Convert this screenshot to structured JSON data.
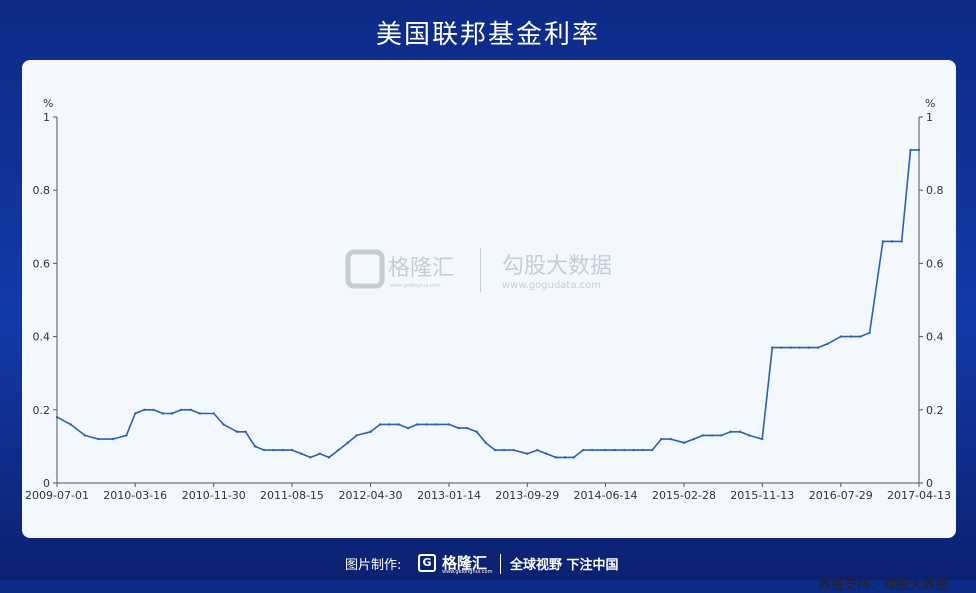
{
  "title": "美国联邦基金利率",
  "source": "数据支持：勾股大数据",
  "watermark": {
    "brand": "格隆汇",
    "brand_url": "www.gelonghui.com",
    "data_brand": "勾股大数据",
    "data_url": "www.gogudata.com"
  },
  "footer": {
    "made_by": "图片制作:",
    "logo_name": "格隆汇",
    "logo_sub": "www.gelonghui.com",
    "slogan": "全球视野 下注中国"
  },
  "chart_data": {
    "type": "line",
    "title": "美国联邦基金利率",
    "ylabel": "%",
    "ylabel_right": "%",
    "ylim": [
      0,
      1
    ],
    "yticks": [
      0,
      0.2,
      0.4,
      0.6,
      0.8,
      1
    ],
    "ytick_labels": [
      "0",
      "0.2",
      "0.4",
      "0.6",
      "0.8",
      "1"
    ],
    "xlim": [
      "2009-07-01",
      "2017-04-13"
    ],
    "xticks": [
      "2009-07-01",
      "2010-03-16",
      "2010-11-30",
      "2011-08-15",
      "2012-04-30",
      "2013-01-14",
      "2013-09-29",
      "2014-06-14",
      "2015-02-28",
      "2015-11-13",
      "2016-07-29",
      "2017-04-13"
    ],
    "color": "#2f5fb3",
    "series": [
      {
        "x": [
          "2009-07-01",
          "2009-08-15",
          "2009-10-01",
          "2009-11-15",
          "2010-01-01",
          "2010-02-15",
          "2010-03-16",
          "2010-04-15",
          "2010-05-15",
          "2010-06-15",
          "2010-07-15",
          "2010-08-15",
          "2010-09-15",
          "2010-10-15",
          "2010-11-30",
          "2011-01-01",
          "2011-02-15",
          "2011-03-15",
          "2011-04-15",
          "2011-05-15",
          "2011-06-15",
          "2011-07-15",
          "2011-08-15",
          "2011-09-15",
          "2011-10-15",
          "2011-11-15",
          "2011-12-15",
          "2012-01-15",
          "2012-02-15",
          "2012-03-15",
          "2012-04-30",
          "2012-06-01",
          "2012-07-01",
          "2012-08-01",
          "2012-09-01",
          "2012-10-01",
          "2012-11-01",
          "2012-12-01",
          "2013-01-14",
          "2013-02-15",
          "2013-03-15",
          "2013-04-15",
          "2013-05-15",
          "2013-06-15",
          "2013-07-15",
          "2013-08-15",
          "2013-09-29",
          "2013-11-01",
          "2013-12-01",
          "2014-01-01",
          "2014-02-01",
          "2014-03-01",
          "2014-04-01",
          "2014-05-01",
          "2014-06-14",
          "2014-07-15",
          "2014-08-15",
          "2014-09-15",
          "2014-10-15",
          "2014-11-15",
          "2014-12-15",
          "2015-01-15",
          "2015-02-28",
          "2015-04-01",
          "2015-05-01",
          "2015-06-01",
          "2015-07-01",
          "2015-08-01",
          "2015-09-01",
          "2015-10-01",
          "2015-11-13",
          "2015-12-16",
          "2016-01-15",
          "2016-02-15",
          "2016-03-15",
          "2016-04-15",
          "2016-05-15",
          "2016-06-15",
          "2016-07-29",
          "2016-09-01",
          "2016-10-01",
          "2016-11-01",
          "2016-12-15",
          "2017-01-15",
          "2017-02-15",
          "2017-03-16",
          "2017-04-13"
        ],
        "values": [
          0.18,
          0.16,
          0.13,
          0.12,
          0.12,
          0.13,
          0.19,
          0.2,
          0.2,
          0.19,
          0.19,
          0.2,
          0.2,
          0.19,
          0.19,
          0.16,
          0.14,
          0.14,
          0.1,
          0.09,
          0.09,
          0.09,
          0.09,
          0.08,
          0.07,
          0.08,
          0.07,
          0.09,
          0.11,
          0.13,
          0.14,
          0.16,
          0.16,
          0.16,
          0.15,
          0.16,
          0.16,
          0.16,
          0.16,
          0.15,
          0.15,
          0.14,
          0.11,
          0.09,
          0.09,
          0.09,
          0.08,
          0.09,
          0.08,
          0.07,
          0.07,
          0.07,
          0.09,
          0.09,
          0.09,
          0.09,
          0.09,
          0.09,
          0.09,
          0.09,
          0.12,
          0.12,
          0.11,
          0.12,
          0.13,
          0.13,
          0.13,
          0.14,
          0.14,
          0.13,
          0.12,
          0.37,
          0.37,
          0.37,
          0.37,
          0.37,
          0.37,
          0.38,
          0.4,
          0.4,
          0.4,
          0.41,
          0.66,
          0.66,
          0.66,
          0.91,
          0.91
        ]
      }
    ],
    "grid": false,
    "legend": "none"
  }
}
